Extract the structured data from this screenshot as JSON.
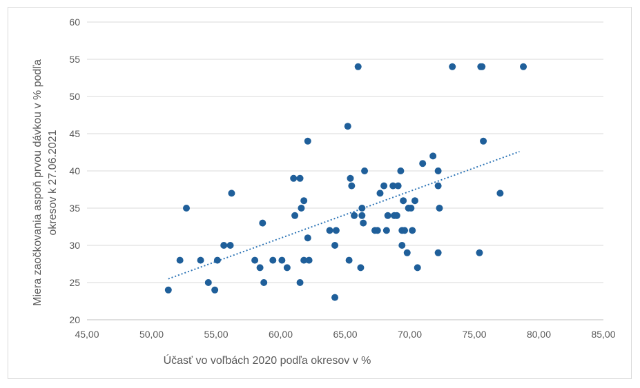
{
  "chart_data": {
    "type": "scatter",
    "title": "",
    "xlabel": "Účasť vo voľbách 2020 podľa okresov v %",
    "ylabel_lines": [
      "Miera zaočkovania aspoň prvou dávkou v % podľa",
      "okresov k 27.06.2021"
    ],
    "xlim": [
      45,
      85
    ],
    "ylim": [
      20,
      60
    ],
    "x_ticks": [
      45,
      50,
      55,
      60,
      65,
      70,
      75,
      80,
      85
    ],
    "x_tick_labels": [
      "45,00",
      "50,00",
      "55,00",
      "60,00",
      "65,00",
      "70,00",
      "75,00",
      "80,00",
      "85,00"
    ],
    "y_ticks": [
      20,
      25,
      30,
      35,
      40,
      45,
      50,
      55,
      60
    ],
    "y_tick_labels": [
      "20",
      "25",
      "30",
      "35",
      "40",
      "45",
      "50",
      "55",
      "60"
    ],
    "grid": "horizontal",
    "legend": "none",
    "marker_color": "#1f5f9a",
    "trendline": {
      "type": "linear",
      "style": "dotted",
      "color": "#2e75b6",
      "x_range": [
        51.3,
        78.5
      ],
      "y_range": [
        25.5,
        42.6
      ]
    },
    "points": [
      {
        "x": 51.3,
        "y": 24
      },
      {
        "x": 52.2,
        "y": 28
      },
      {
        "x": 52.7,
        "y": 35
      },
      {
        "x": 53.8,
        "y": 28
      },
      {
        "x": 54.4,
        "y": 25
      },
      {
        "x": 54.9,
        "y": 24
      },
      {
        "x": 55.1,
        "y": 28
      },
      {
        "x": 55.6,
        "y": 30
      },
      {
        "x": 56.1,
        "y": 30
      },
      {
        "x": 56.2,
        "y": 37
      },
      {
        "x": 58.0,
        "y": 28
      },
      {
        "x": 58.4,
        "y": 27
      },
      {
        "x": 58.6,
        "y": 33
      },
      {
        "x": 58.7,
        "y": 25
      },
      {
        "x": 59.4,
        "y": 28
      },
      {
        "x": 60.1,
        "y": 28
      },
      {
        "x": 60.5,
        "y": 27
      },
      {
        "x": 61.0,
        "y": 39
      },
      {
        "x": 61.1,
        "y": 34
      },
      {
        "x": 61.5,
        "y": 39
      },
      {
        "x": 61.5,
        "y": 25
      },
      {
        "x": 61.6,
        "y": 35
      },
      {
        "x": 61.8,
        "y": 36
      },
      {
        "x": 61.8,
        "y": 28
      },
      {
        "x": 62.1,
        "y": 44
      },
      {
        "x": 62.1,
        "y": 31
      },
      {
        "x": 62.2,
        "y": 28
      },
      {
        "x": 63.8,
        "y": 32
      },
      {
        "x": 64.2,
        "y": 30
      },
      {
        "x": 64.2,
        "y": 23
      },
      {
        "x": 64.3,
        "y": 32
      },
      {
        "x": 65.2,
        "y": 46
      },
      {
        "x": 65.3,
        "y": 28
      },
      {
        "x": 65.4,
        "y": 39
      },
      {
        "x": 65.5,
        "y": 38
      },
      {
        "x": 65.7,
        "y": 34
      },
      {
        "x": 66.0,
        "y": 54
      },
      {
        "x": 66.2,
        "y": 27
      },
      {
        "x": 66.3,
        "y": 35
      },
      {
        "x": 66.3,
        "y": 34
      },
      {
        "x": 66.4,
        "y": 33
      },
      {
        "x": 66.5,
        "y": 40
      },
      {
        "x": 67.3,
        "y": 32
      },
      {
        "x": 67.5,
        "y": 32
      },
      {
        "x": 67.7,
        "y": 37
      },
      {
        "x": 68.0,
        "y": 38
      },
      {
        "x": 68.2,
        "y": 32
      },
      {
        "x": 68.3,
        "y": 34
      },
      {
        "x": 68.7,
        "y": 38
      },
      {
        "x": 68.8,
        "y": 34
      },
      {
        "x": 69.0,
        "y": 34
      },
      {
        "x": 69.1,
        "y": 38
      },
      {
        "x": 69.3,
        "y": 40
      },
      {
        "x": 69.4,
        "y": 32
      },
      {
        "x": 69.4,
        "y": 30
      },
      {
        "x": 69.5,
        "y": 36
      },
      {
        "x": 69.6,
        "y": 32
      },
      {
        "x": 69.8,
        "y": 29
      },
      {
        "x": 69.9,
        "y": 35
      },
      {
        "x": 70.1,
        "y": 35
      },
      {
        "x": 70.2,
        "y": 32
      },
      {
        "x": 70.4,
        "y": 36
      },
      {
        "x": 70.6,
        "y": 27
      },
      {
        "x": 71.0,
        "y": 41
      },
      {
        "x": 71.8,
        "y": 42
      },
      {
        "x": 72.2,
        "y": 40
      },
      {
        "x": 72.2,
        "y": 38
      },
      {
        "x": 72.2,
        "y": 29
      },
      {
        "x": 72.3,
        "y": 35
      },
      {
        "x": 73.3,
        "y": 54
      },
      {
        "x": 75.4,
        "y": 29
      },
      {
        "x": 75.5,
        "y": 54
      },
      {
        "x": 75.6,
        "y": 54
      },
      {
        "x": 75.7,
        "y": 44
      },
      {
        "x": 77.0,
        "y": 37
      },
      {
        "x": 78.8,
        "y": 54
      }
    ]
  }
}
